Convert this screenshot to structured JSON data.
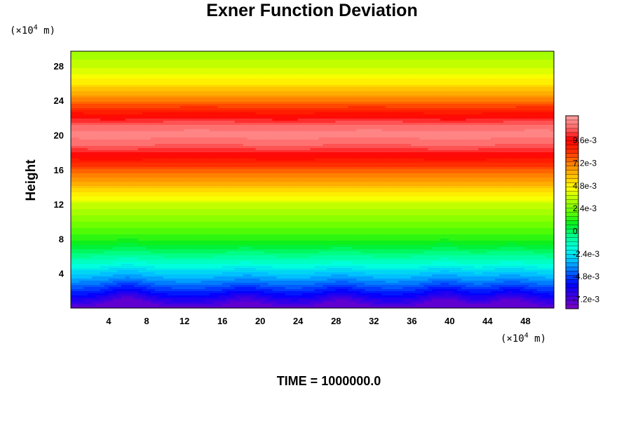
{
  "chart_data": {
    "type": "heatmap",
    "title": "Exner Function Deviation",
    "ylabel": "Height",
    "xunit_prefix": "(×10",
    "xunit_exp": "4",
    "xunit_suffix": " m)",
    "yunit_prefix": "(×10",
    "yunit_exp": "4",
    "yunit_suffix": " m)",
    "footer": "TIME = 1000000.0",
    "xlim": [
      0,
      51
    ],
    "ylim": [
      0,
      29.7
    ],
    "x_ticks": [
      "4",
      "8",
      "12",
      "16",
      "20",
      "24",
      "28",
      "32",
      "36",
      "40",
      "44",
      "48"
    ],
    "y_ticks": [
      "4",
      "8",
      "12",
      "16",
      "20",
      "24",
      "28"
    ],
    "colorbar": {
      "range": [
        -0.0082,
        0.0122
      ],
      "ticks": [
        "9.6e-3",
        "7.2e-3",
        "4.8e-3",
        "2.4e-3",
        "0",
        "-2.4e-3",
        "-4.8e-3",
        "-7.2e-3"
      ]
    },
    "height_profile": {
      "height": [
        0,
        1,
        2,
        3,
        4,
        5,
        6,
        7,
        8,
        10,
        12,
        14,
        16,
        18,
        19,
        20,
        21,
        22,
        24,
        26,
        28,
        29.7
      ],
      "value": [
        -0.0075,
        -0.0062,
        -0.005,
        -0.0038,
        -0.0028,
        -0.0016,
        -0.0006,
        0.0004,
        0.0013,
        0.0025,
        0.0037,
        0.0058,
        0.0078,
        0.01,
        0.011,
        0.0115,
        0.0111,
        0.0098,
        0.0072,
        0.005,
        0.0036,
        0.003
      ]
    },
    "surface_bumps": [
      {
        "x": 6.0,
        "amplitude": 1.4
      },
      {
        "x": 18.5,
        "amplitude": 0.9
      },
      {
        "x": 28.5,
        "amplitude": 1.0
      },
      {
        "x": 39.5,
        "amplitude": 1.2
      },
      {
        "x": 46.5,
        "amplitude": 1.1
      }
    ],
    "colors": {
      "palette": [
        "#8000c0",
        "#4000e0",
        "#0000ff",
        "#0060ff",
        "#00c0ff",
        "#00ffe0",
        "#00ff90",
        "#00ee20",
        "#60ff00",
        "#b0ff00",
        "#ffff00",
        "#ffc000",
        "#ff8000",
        "#ff3000",
        "#ff0000",
        "#ff6a6a",
        "#ffa0a0"
      ]
    }
  }
}
